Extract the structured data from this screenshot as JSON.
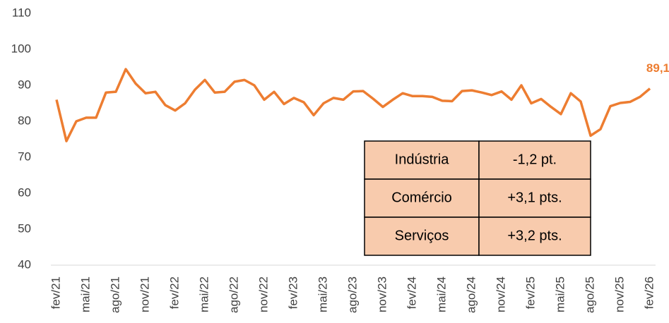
{
  "chart_data": {
    "type": "line",
    "categories": [
      "fev/21",
      null,
      null,
      "mai/21",
      null,
      null,
      "ago/21",
      null,
      null,
      "nov/21",
      null,
      null,
      "fev/22",
      null,
      null,
      "mai/22",
      null,
      null,
      "ago/22",
      null,
      null,
      "nov/22",
      null,
      null,
      "fev/23",
      null,
      null,
      "mai/23",
      null,
      null,
      "ago/23",
      null,
      null,
      "nov/23",
      null,
      null,
      "fev/24",
      null,
      null,
      "mai/24",
      null,
      null,
      "ago/24",
      null,
      null,
      "nov/24",
      null,
      null,
      "fev/25",
      null,
      null,
      "mai/25",
      null,
      null,
      "ago/25",
      null,
      null,
      "nov/25",
      null,
      null,
      "fev/26"
    ],
    "values": [
      86,
      74.5,
      80,
      81,
      81,
      88,
      88.2,
      94.5,
      90.5,
      87.8,
      88.2,
      84.5,
      83,
      85,
      88.8,
      91.5,
      88,
      88.2,
      91,
      91.5,
      90,
      86,
      88.2,
      84.8,
      86.5,
      85.3,
      81.7,
      85,
      86.5,
      86,
      88.3,
      88.4,
      86.3,
      84,
      86,
      87.8,
      87,
      87,
      86.8,
      85.7,
      85.6,
      88.4,
      88.6,
      88,
      87.3,
      88.3,
      86,
      90,
      85,
      86.2,
      84,
      82,
      87.8,
      85.5,
      76,
      77.8,
      84.2,
      85.1,
      85.4,
      86.8,
      89.1
    ],
    "value_labels": [
      null,
      null,
      null,
      null,
      null,
      null,
      null,
      null,
      null,
      null,
      null,
      null,
      null,
      null,
      null,
      null,
      null,
      null,
      null,
      null,
      null,
      null,
      null,
      null,
      null,
      null,
      null,
      null,
      null,
      null,
      null,
      null,
      null,
      null,
      null,
      null,
      null,
      null,
      null,
      null,
      null,
      null,
      null,
      null,
      null,
      null,
      null,
      null,
      null,
      null,
      null,
      null,
      null,
      null,
      null,
      null,
      null,
      null,
      null,
      null,
      "89,1"
    ],
    "color": "#ed7d31",
    "ylim": [
      40,
      110
    ],
    "yticks": [
      40,
      50,
      60,
      70,
      80,
      90,
      100,
      110
    ],
    "grid": false,
    "table": {
      "rows": [
        [
          "Indústria",
          "-1,2 pt."
        ],
        [
          "Comércio",
          "+3,1 pts."
        ],
        [
          "Serviços",
          "+3,2 pts."
        ]
      ],
      "fill": "#f8cbad"
    }
  }
}
